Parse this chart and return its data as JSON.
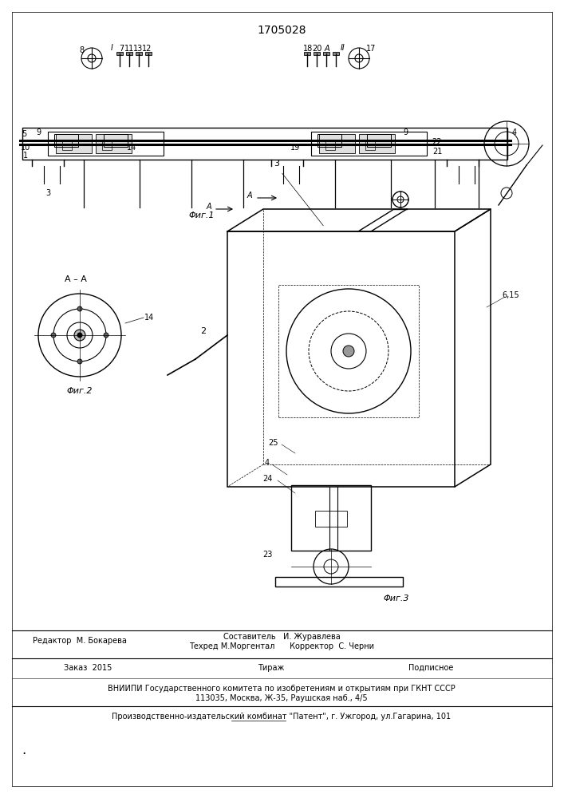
{
  "patent_number": "1705028",
  "bg_color": "#ffffff",
  "line_color": "#000000",
  "footer_lines": [
    "Редактор  М. Бокарева",
    "Заказ  2015        Тираж                   Подписное",
    "ВНИИПИ Государственного комитета по изобретениям и открытиям при ГКНТ СССР",
    "113035, Москва, Ж-35, Раушская наб., 4/5",
    "Производственно-издательский комбинат \"Патент\", г. Ужгород, ул.Гагарина, 101"
  ],
  "footer_mid": [
    "Составитель   И. Журавлева",
    "Техред М.Моргентал      Корректор  С. Черни"
  ],
  "fig1_label": "Φиг.1",
  "fig2_label": "Φиг.2",
  "fig3_label": "Φиг.3",
  "section_label": "A – A"
}
